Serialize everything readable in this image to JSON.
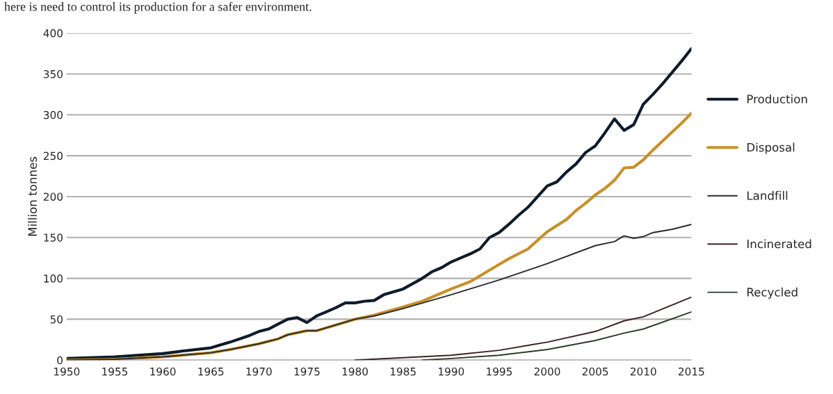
{
  "chart_data": {
    "type": "line",
    "ylabel": "Million tonnes",
    "annotations": [
      "here is need to control its production for a safer environment."
    ],
    "xlim": [
      1950,
      2015
    ],
    "xticks": [
      1950,
      1955,
      1960,
      1965,
      1970,
      1975,
      1980,
      1985,
      1990,
      1995,
      2000,
      2005,
      2010,
      2015
    ],
    "ylim": [
      0,
      400
    ],
    "yticks": [
      0,
      50,
      100,
      150,
      200,
      250,
      300,
      350,
      400
    ],
    "grid": "y",
    "legend": "right",
    "marker": "none",
    "line_style": "solid",
    "series": [
      {
        "name": "Production",
        "color": "#0d1b2a",
        "x": [
          1950,
          1955,
          1960,
          1962,
          1965,
          1967,
          1969,
          1970,
          1971,
          1972,
          1973,
          1974,
          1975,
          1976,
          1977,
          1978,
          1979,
          1980,
          1981,
          1982,
          1983,
          1985,
          1987,
          1988,
          1989,
          1990,
          1991,
          1992,
          1993,
          1994,
          1995,
          1996,
          1997,
          1998,
          1999,
          2000,
          2001,
          2002,
          2003,
          2004,
          2005,
          2006,
          2007,
          2008,
          2009,
          2010,
          2011,
          2012,
          2013,
          2014,
          2015
        ],
        "values": [
          2,
          4,
          8,
          11,
          15,
          22,
          30,
          35,
          38,
          44,
          50,
          52,
          46,
          54,
          59,
          64,
          70,
          70,
          72,
          73,
          80,
          87,
          100,
          108,
          113,
          120,
          125,
          130,
          136,
          150,
          156,
          166,
          177,
          187,
          200,
          213,
          218,
          230,
          240,
          254,
          262,
          278,
          295,
          281,
          288,
          313,
          325,
          338,
          352,
          366,
          381
        ]
      },
      {
        "name": "Disposal",
        "color": "#c8902a",
        "x": [
          1950,
          1955,
          1960,
          1965,
          1967,
          1970,
          1972,
          1973,
          1975,
          1976,
          1978,
          1980,
          1982,
          1985,
          1987,
          1990,
          1992,
          1995,
          1996,
          1998,
          2000,
          2002,
          2003,
          2004,
          2005,
          2006,
          2007,
          2008,
          2009,
          2010,
          2011,
          2012,
          2013,
          2014,
          2015
        ],
        "values": [
          0,
          1,
          4,
          9,
          13,
          20,
          26,
          31,
          36,
          36,
          43,
          50,
          55,
          65,
          72,
          87,
          96,
          117,
          124,
          136,
          157,
          172,
          183,
          192,
          202,
          210,
          220,
          235,
          236,
          245,
          257,
          268,
          279,
          290,
          302
        ]
      },
      {
        "name": "Landfill",
        "color": "#2a2a2a",
        "x": [
          1950,
          1955,
          1960,
          1965,
          1967,
          1970,
          1972,
          1973,
          1975,
          1976,
          1978,
          1980,
          1982,
          1985,
          1990,
          1995,
          2000,
          2005,
          2007,
          2008,
          2009,
          2010,
          2011,
          2013,
          2015
        ],
        "values": [
          0,
          1,
          4,
          9,
          13,
          20,
          26,
          31,
          36,
          36,
          43,
          50,
          54,
          63,
          80,
          98,
          118,
          140,
          145,
          152,
          149,
          151,
          156,
          160,
          166
        ]
      },
      {
        "name": "Incinerated",
        "color": "#3a2020",
        "x": [
          1980,
          1985,
          1990,
          1995,
          2000,
          2005,
          2008,
          2010,
          2015
        ],
        "values": [
          0,
          3,
          6,
          12,
          22,
          35,
          48,
          53,
          77
        ]
      },
      {
        "name": "Recycled",
        "color": "#2a3a2a",
        "x": [
          1987,
          1990,
          1995,
          2000,
          2005,
          2008,
          2010,
          2015
        ],
        "values": [
          0,
          2,
          6,
          13,
          24,
          33,
          38,
          59
        ]
      }
    ]
  }
}
